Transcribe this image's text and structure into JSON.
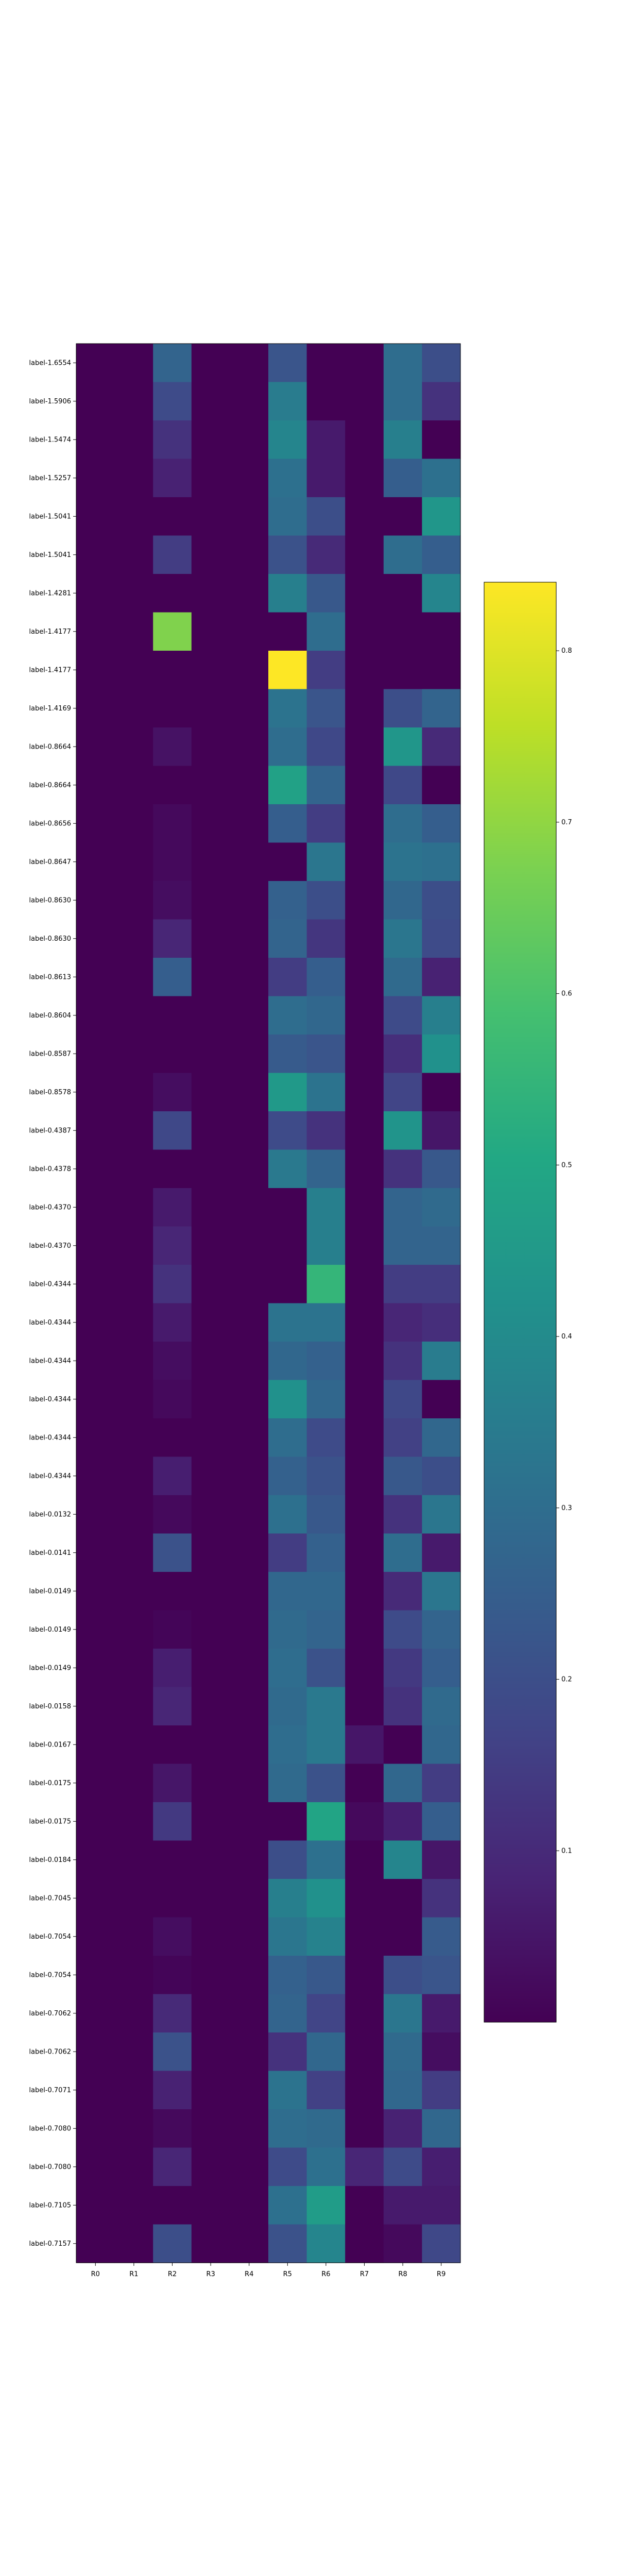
{
  "chart_data": {
    "type": "heatmap",
    "title": "",
    "xlabel": "",
    "ylabel": "",
    "colormap": "viridis",
    "vmin": 0.0,
    "vmax": 0.84,
    "colorbar_ticks": [
      0.1,
      0.2,
      0.3,
      0.4,
      0.5,
      0.6,
      0.7,
      0.8
    ],
    "colorbar_tick_labels": [
      "0.1",
      "0.2",
      "0.3",
      "0.4",
      "0.5",
      "0.6",
      "0.7",
      "0.8"
    ],
    "columns": [
      "R0",
      "R1",
      "R2",
      "R3",
      "R4",
      "R5",
      "R6",
      "R7",
      "R8",
      "R9"
    ],
    "rows": [
      "label-1.6554",
      "label-1.5906",
      "label-1.5474",
      "label-1.5257",
      "label-1.5041",
      "label-1.5041",
      "label-1.4281",
      "label-1.4177",
      "label-1.4177",
      "label-1.4169",
      "label-0.8664",
      "label-0.8664",
      "label-0.8656",
      "label-0.8647",
      "label-0.8630",
      "label-0.8630",
      "label-0.8613",
      "label-0.8604",
      "label-0.8587",
      "label-0.8578",
      "label-0.4387",
      "label-0.4378",
      "label-0.4370",
      "label-0.4370",
      "label-0.4344",
      "label-0.4344",
      "label-0.4344",
      "label-0.4344",
      "label-0.4344",
      "label-0.4344",
      "label-0.0132",
      "label-0.0141",
      "label-0.0149",
      "label-0.0149",
      "label-0.0149",
      "label-0.0158",
      "label-0.0167",
      "label-0.0175",
      "label-0.0175",
      "label-0.0184",
      "label-0.7045",
      "label-0.7054",
      "label-0.7054",
      "label-0.7062",
      "label-0.7062",
      "label-0.7071",
      "label-0.7080",
      "label-0.7080",
      "label-0.7105",
      "label-0.7157"
    ],
    "values": [
      [
        0.0,
        0.0,
        0.27,
        0.0,
        0.0,
        0.22,
        0.0,
        0.0,
        0.3,
        0.2
      ],
      [
        0.0,
        0.0,
        0.19,
        0.0,
        0.0,
        0.35,
        0.0,
        0.0,
        0.3,
        0.12
      ],
      [
        0.0,
        0.0,
        0.12,
        0.0,
        0.0,
        0.38,
        0.06,
        0.0,
        0.36,
        0.0
      ],
      [
        0.0,
        0.0,
        0.08,
        0.0,
        0.0,
        0.31,
        0.06,
        0.0,
        0.25,
        0.31
      ],
      [
        0.0,
        0.0,
        0.0,
        0.0,
        0.0,
        0.3,
        0.2,
        0.0,
        0.0,
        0.44
      ],
      [
        0.0,
        0.0,
        0.15,
        0.0,
        0.0,
        0.21,
        0.1,
        0.0,
        0.3,
        0.25
      ],
      [
        0.0,
        0.0,
        0.0,
        0.0,
        0.0,
        0.36,
        0.23,
        0.0,
        0.0,
        0.38
      ],
      [
        0.0,
        0.0,
        0.68,
        0.0,
        0.0,
        0.0,
        0.3,
        0.0,
        0.0,
        0.0
      ],
      [
        0.0,
        0.0,
        0.0,
        0.0,
        0.0,
        0.84,
        0.15,
        0.0,
        0.0,
        0.0
      ],
      [
        0.0,
        0.0,
        0.0,
        0.0,
        0.0,
        0.32,
        0.22,
        0.0,
        0.2,
        0.27
      ],
      [
        0.0,
        0.0,
        0.04,
        0.0,
        0.0,
        0.3,
        0.18,
        0.0,
        0.44,
        0.1
      ],
      [
        0.0,
        0.0,
        0.0,
        0.0,
        0.0,
        0.48,
        0.27,
        0.0,
        0.18,
        0.0
      ],
      [
        0.0,
        0.0,
        0.02,
        0.0,
        0.0,
        0.25,
        0.15,
        0.0,
        0.3,
        0.25
      ],
      [
        0.0,
        0.0,
        0.02,
        0.0,
        0.0,
        0.0,
        0.33,
        0.0,
        0.32,
        0.31
      ],
      [
        0.0,
        0.0,
        0.03,
        0.0,
        0.0,
        0.26,
        0.2,
        0.0,
        0.28,
        0.2
      ],
      [
        0.0,
        0.0,
        0.09,
        0.0,
        0.0,
        0.27,
        0.13,
        0.0,
        0.33,
        0.19
      ],
      [
        0.0,
        0.0,
        0.25,
        0.0,
        0.0,
        0.15,
        0.25,
        0.0,
        0.29,
        0.08
      ],
      [
        0.0,
        0.0,
        0.0,
        0.0,
        0.0,
        0.3,
        0.28,
        0.0,
        0.19,
        0.36
      ],
      [
        0.0,
        0.0,
        0.0,
        0.0,
        0.0,
        0.24,
        0.22,
        0.0,
        0.11,
        0.42
      ],
      [
        0.0,
        0.0,
        0.03,
        0.0,
        0.0,
        0.45,
        0.32,
        0.0,
        0.17,
        0.0
      ],
      [
        0.0,
        0.0,
        0.18,
        0.0,
        0.0,
        0.19,
        0.12,
        0.0,
        0.43,
        0.05
      ],
      [
        0.0,
        0.0,
        0.0,
        0.0,
        0.0,
        0.34,
        0.27,
        0.0,
        0.12,
        0.23
      ],
      [
        0.0,
        0.0,
        0.06,
        0.0,
        0.0,
        0.0,
        0.36,
        0.0,
        0.27,
        0.29
      ],
      [
        0.0,
        0.0,
        0.09,
        0.0,
        0.0,
        0.0,
        0.36,
        0.0,
        0.27,
        0.27
      ],
      [
        0.0,
        0.0,
        0.12,
        0.0,
        0.0,
        0.0,
        0.55,
        0.0,
        0.15,
        0.15
      ],
      [
        0.0,
        0.0,
        0.06,
        0.0,
        0.0,
        0.32,
        0.32,
        0.0,
        0.09,
        0.11
      ],
      [
        0.0,
        0.0,
        0.03,
        0.0,
        0.0,
        0.28,
        0.26,
        0.0,
        0.12,
        0.35
      ],
      [
        0.0,
        0.0,
        0.02,
        0.0,
        0.0,
        0.42,
        0.28,
        0.0,
        0.18,
        0.0
      ],
      [
        0.0,
        0.0,
        0.0,
        0.0,
        0.0,
        0.3,
        0.19,
        0.0,
        0.16,
        0.28
      ],
      [
        0.0,
        0.0,
        0.07,
        0.0,
        0.0,
        0.26,
        0.21,
        0.0,
        0.23,
        0.2
      ],
      [
        0.0,
        0.0,
        0.02,
        0.0,
        0.0,
        0.31,
        0.23,
        0.0,
        0.12,
        0.33
      ],
      [
        0.0,
        0.0,
        0.21,
        0.0,
        0.0,
        0.15,
        0.26,
        0.0,
        0.3,
        0.06
      ],
      [
        0.0,
        0.0,
        0.0,
        0.0,
        0.0,
        0.28,
        0.28,
        0.0,
        0.1,
        0.33
      ],
      [
        0.0,
        0.0,
        0.01,
        0.0,
        0.0,
        0.29,
        0.27,
        0.0,
        0.19,
        0.27
      ],
      [
        0.0,
        0.0,
        0.07,
        0.0,
        0.0,
        0.3,
        0.21,
        0.0,
        0.14,
        0.25
      ],
      [
        0.0,
        0.0,
        0.09,
        0.0,
        0.0,
        0.29,
        0.34,
        0.0,
        0.12,
        0.29
      ],
      [
        0.0,
        0.0,
        0.0,
        0.0,
        0.0,
        0.3,
        0.34,
        0.05,
        0.0,
        0.28
      ],
      [
        0.0,
        0.0,
        0.05,
        0.0,
        0.0,
        0.29,
        0.21,
        0.0,
        0.28,
        0.15
      ],
      [
        0.0,
        0.0,
        0.14,
        0.0,
        0.0,
        0.0,
        0.49,
        0.02,
        0.07,
        0.25
      ],
      [
        0.0,
        0.0,
        0.0,
        0.0,
        0.0,
        0.2,
        0.31,
        0.0,
        0.38,
        0.05
      ],
      [
        0.0,
        0.0,
        0.0,
        0.0,
        0.0,
        0.36,
        0.42,
        0.0,
        0.0,
        0.12
      ],
      [
        0.0,
        0.0,
        0.03,
        0.0,
        0.0,
        0.33,
        0.37,
        0.0,
        0.0,
        0.24
      ],
      [
        0.0,
        0.0,
        0.01,
        0.0,
        0.0,
        0.26,
        0.23,
        0.0,
        0.2,
        0.22
      ],
      [
        0.0,
        0.0,
        0.1,
        0.0,
        0.0,
        0.27,
        0.17,
        0.0,
        0.33,
        0.06
      ],
      [
        0.0,
        0.0,
        0.21,
        0.0,
        0.0,
        0.12,
        0.28,
        0.0,
        0.29,
        0.03
      ],
      [
        0.0,
        0.0,
        0.08,
        0.0,
        0.0,
        0.32,
        0.16,
        0.0,
        0.28,
        0.15
      ],
      [
        0.0,
        0.0,
        0.02,
        0.0,
        0.0,
        0.3,
        0.29,
        0.0,
        0.08,
        0.28
      ],
      [
        0.0,
        0.0,
        0.09,
        0.0,
        0.0,
        0.19,
        0.31,
        0.09,
        0.19,
        0.07
      ],
      [
        0.0,
        0.0,
        0.0,
        0.0,
        0.0,
        0.31,
        0.46,
        0.0,
        0.06,
        0.06
      ],
      [
        0.0,
        0.0,
        0.2,
        0.0,
        0.0,
        0.21,
        0.38,
        0.0,
        0.02,
        0.18
      ]
    ]
  }
}
